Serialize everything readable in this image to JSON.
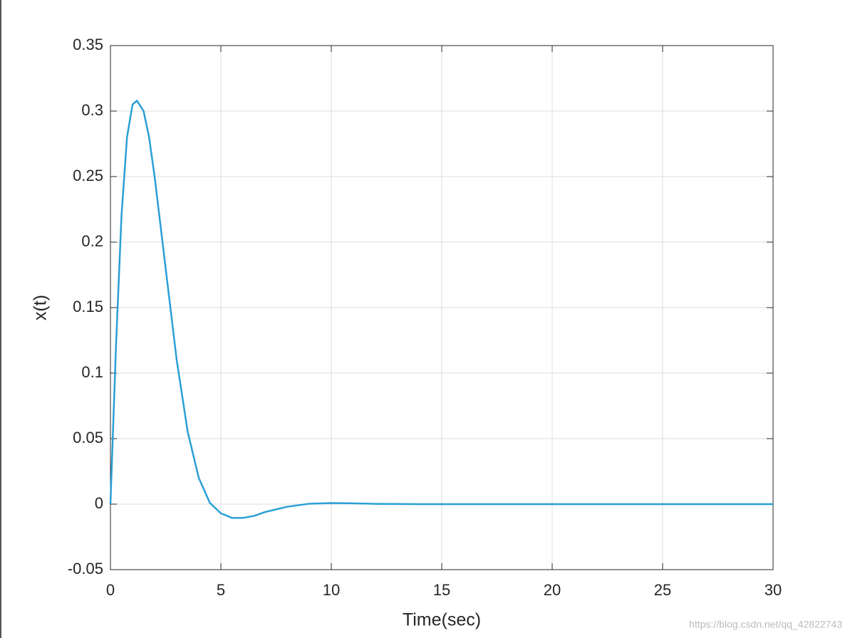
{
  "chart_data": {
    "type": "line",
    "xlabel": "Time(sec)",
    "ylabel": "x(t)",
    "x": [
      0,
      0.25,
      0.5,
      0.75,
      1,
      1.2,
      1.5,
      1.75,
      2,
      2.5,
      3,
      3.5,
      4,
      4.5,
      5,
      5.5,
      6,
      6.5,
      7,
      8,
      9,
      10,
      11,
      12,
      14,
      16,
      20,
      25,
      30
    ],
    "series": [
      {
        "color": "#2a9fd6",
        "values": [
          0,
          0.12,
          0.22,
          0.28,
          0.305,
          0.308,
          0.3,
          0.28,
          0.25,
          0.18,
          0.11,
          0.055,
          0.02,
          0.001,
          -0.007,
          -0.0105,
          -0.0105,
          -0.009,
          -0.006,
          -0.002,
          0.0003,
          0.0008,
          0.0006,
          0.0002,
          0,
          0,
          0,
          0,
          0
        ]
      }
    ],
    "xlim": [
      0,
      30
    ],
    "xticks": [
      0,
      5,
      10,
      15,
      20,
      25,
      30
    ],
    "ylim": [
      -0.05,
      0.35
    ],
    "yticks": [
      -0.05,
      0,
      0.05,
      0.1,
      0.15,
      0.2,
      0.25,
      0.3,
      0.35
    ],
    "grid": true,
    "watermark": "https://blog.csdn.net/qq_42822743"
  }
}
